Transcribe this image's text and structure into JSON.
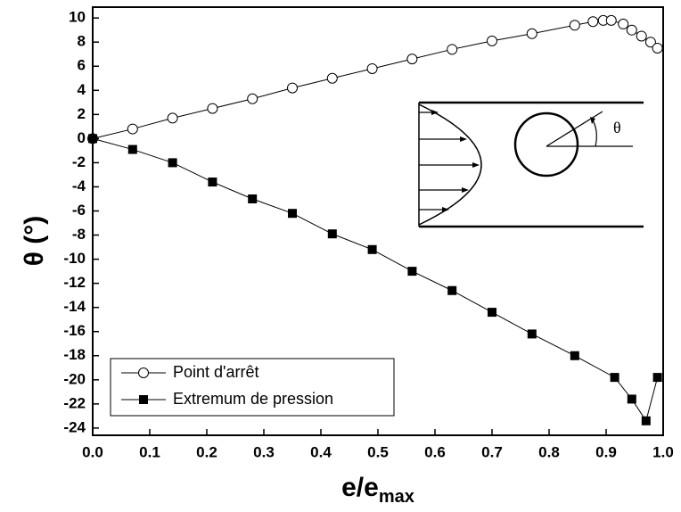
{
  "chart_data": {
    "type": "line",
    "x_label": "e/e",
    "x_label_sub": "max",
    "y_label": "θ (°)",
    "inset_label": "θ",
    "xlim": [
      0,
      1.0
    ],
    "ylim": [
      -24.6,
      10.9
    ],
    "xticks": [
      {
        "value": 0,
        "label": "0.0"
      },
      0.1,
      0.2,
      0.3,
      0.4,
      0.5,
      0.6,
      0.7,
      0.8,
      0.9,
      {
        "value": 1,
        "label": "1.0"
      }
    ],
    "yticks": [
      10,
      8,
      6,
      4,
      2,
      0,
      -2,
      -4,
      -6,
      -8,
      -10,
      -12,
      -14,
      -16,
      -18,
      -20,
      -22,
      -24
    ],
    "legend": "lower left",
    "series": [
      {
        "name": "Point d'arrêt",
        "color": "#000",
        "marker": "circle",
        "x": [
          0,
          0.07,
          0.14,
          0.21,
          0.28,
          0.35,
          0.42,
          0.49,
          0.56,
          0.63,
          0.7,
          0.77,
          0.845,
          0.877,
          0.895,
          0.909,
          0.93,
          0.945,
          0.962,
          0.978,
          0.99
        ],
        "values": [
          0,
          0.8,
          1.7,
          2.5,
          3.3,
          4.2,
          5.0,
          5.8,
          6.6,
          7.4,
          8.1,
          8.7,
          9.4,
          9.7,
          9.8,
          9.8,
          9.5,
          9.0,
          8.5,
          8.0,
          7.5
        ]
      },
      {
        "name": "Extremum de pression",
        "color": "#000",
        "marker": "square",
        "x": [
          0,
          0.07,
          0.14,
          0.21,
          0.28,
          0.35,
          0.42,
          0.49,
          0.56,
          0.63,
          0.7,
          0.77,
          0.845,
          0.915,
          0.945,
          0.97,
          0.99
        ],
        "values": [
          0,
          -0.9,
          -2.0,
          -3.6,
          -5.0,
          -6.2,
          -7.9,
          -9.2,
          -11.0,
          -12.6,
          -14.4,
          -16.2,
          -18.0,
          -19.8,
          -21.6,
          -23.4,
          -19.8
        ]
      }
    ]
  }
}
